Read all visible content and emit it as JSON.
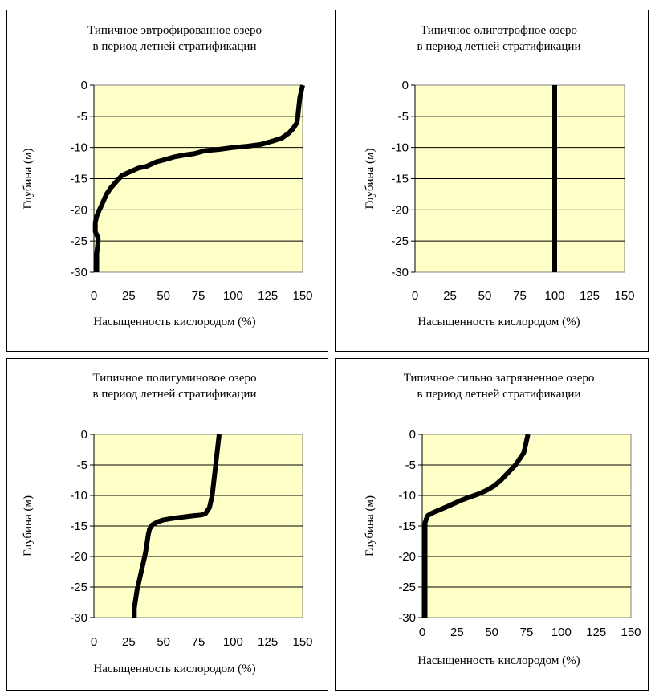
{
  "chart_data": [
    {
      "type": "line",
      "title": "Типичное эвтрофированное озеро в период летней стратификации",
      "title_lines": [
        "Типичное эвтрофированное озеро",
        "в период летней стратификации"
      ],
      "xlabel": "Насыщенность кислородом (%)",
      "ylabel": "Глубина (м)",
      "xlim": [
        0,
        150
      ],
      "ylim": [
        -30,
        0
      ],
      "xticks": [
        0,
        25,
        50,
        75,
        100,
        125,
        150
      ],
      "yticks": [
        0,
        -5,
        -10,
        -15,
        -20,
        -25,
        -30
      ],
      "grid": "horizontal",
      "plot_background": "#ffffc8",
      "line_color": "#000000",
      "series": [
        {
          "x": [
            150,
            148,
            147,
            146,
            143,
            140,
            135,
            128,
            120,
            110,
            100,
            90,
            80,
            72,
            65,
            58,
            50,
            45,
            38,
            32,
            25,
            20,
            16,
            12,
            9,
            6,
            4,
            2,
            1,
            1,
            3,
            3,
            2,
            2
          ],
          "y": [
            0,
            -2,
            -4,
            -6,
            -7,
            -7.7,
            -8.5,
            -9,
            -9.5,
            -9.8,
            -10,
            -10.3,
            -10.5,
            -11,
            -11.2,
            -11.5,
            -12,
            -12.3,
            -13,
            -13.3,
            -14,
            -14.5,
            -15.5,
            -16.5,
            -17.5,
            -19,
            -20,
            -21,
            -22,
            -23.5,
            -24.5,
            -25,
            -27,
            -30
          ]
        }
      ]
    },
    {
      "type": "line",
      "title": "Типичное олиготрофное озеро в период летней стратификации",
      "title_lines": [
        "Типичное олиготрофное озеро",
        "в период летней стратификации"
      ],
      "xlabel": "Насыщенность кислородом (%)",
      "ylabel": "Глубина (м)",
      "xlim": [
        0,
        150
      ],
      "ylim": [
        -30,
        0
      ],
      "xticks": [
        0,
        25,
        50,
        75,
        100,
        125,
        150
      ],
      "yticks": [
        0,
        -5,
        -10,
        -15,
        -20,
        -25,
        -30
      ],
      "grid": "horizontal",
      "plot_background": "#ffffc8",
      "line_color": "#000000",
      "series": [
        {
          "x": [
            100,
            100
          ],
          "y": [
            0,
            -30
          ]
        }
      ]
    },
    {
      "type": "line",
      "title": "Типичное полигуминовое озеро в период летней стратификации",
      "title_lines": [
        "Типичное полигуминовое озеро",
        "в период летней стратификации"
      ],
      "xlabel": "Насыщенность кислородом (%)",
      "ylabel": "Глубина (м)",
      "xlim": [
        0,
        150
      ],
      "ylim": [
        -30,
        0
      ],
      "xticks": [
        0,
        25,
        50,
        75,
        100,
        125,
        150
      ],
      "yticks": [
        0,
        -5,
        -10,
        -15,
        -20,
        -25,
        -30
      ],
      "grid": "horizontal",
      "plot_background": "#ffffc8",
      "line_color": "#000000",
      "series": [
        {
          "x": [
            90,
            89,
            88,
            87,
            86,
            85,
            84,
            83,
            80,
            77,
            72,
            65,
            58,
            50,
            46,
            42,
            40,
            39,
            38,
            37,
            36,
            35,
            34,
            33,
            32,
            31,
            30,
            29,
            29
          ],
          "y": [
            0,
            -2,
            -4,
            -6,
            -8,
            -10,
            -11,
            -12,
            -13,
            -13.2,
            -13.3,
            -13.5,
            -13.7,
            -14,
            -14.3,
            -14.8,
            -15.5,
            -16.5,
            -18,
            -19.5,
            -20.5,
            -21.5,
            -22.5,
            -23.5,
            -24.5,
            -25.5,
            -27,
            -28.5,
            -30
          ]
        }
      ]
    },
    {
      "type": "line",
      "title": "Типичное сильно загрязненное озеро в период летней стратификации",
      "title_lines": [
        "Типичное сильно загрязненное озеро",
        "в период летней стратификации"
      ],
      "xlabel": "Насыщенность кислородом (%)",
      "ylabel": "Глубина (м)",
      "xlim": [
        0,
        150
      ],
      "ylim": [
        -30,
        0
      ],
      "xticks": [
        0,
        25,
        50,
        75,
        100,
        125,
        150
      ],
      "yticks": [
        0,
        -5,
        -10,
        -15,
        -20,
        -25,
        -30
      ],
      "grid": "horizontal",
      "plot_background": "#ffffc8",
      "line_color": "#000000",
      "series": [
        {
          "x": [
            76,
            75,
            74,
            73,
            70,
            67,
            62,
            57,
            52,
            46,
            40,
            35,
            29,
            23,
            18,
            14,
            10,
            7,
            4,
            3,
            2,
            2,
            2
          ],
          "y": [
            0,
            -1,
            -2,
            -3,
            -4,
            -5,
            -6.2,
            -7.4,
            -8.4,
            -9.2,
            -9.8,
            -10.2,
            -10.7,
            -11.3,
            -11.8,
            -12.2,
            -12.6,
            -12.9,
            -13.3,
            -13.8,
            -14.5,
            -20,
            -30
          ]
        }
      ]
    }
  ]
}
